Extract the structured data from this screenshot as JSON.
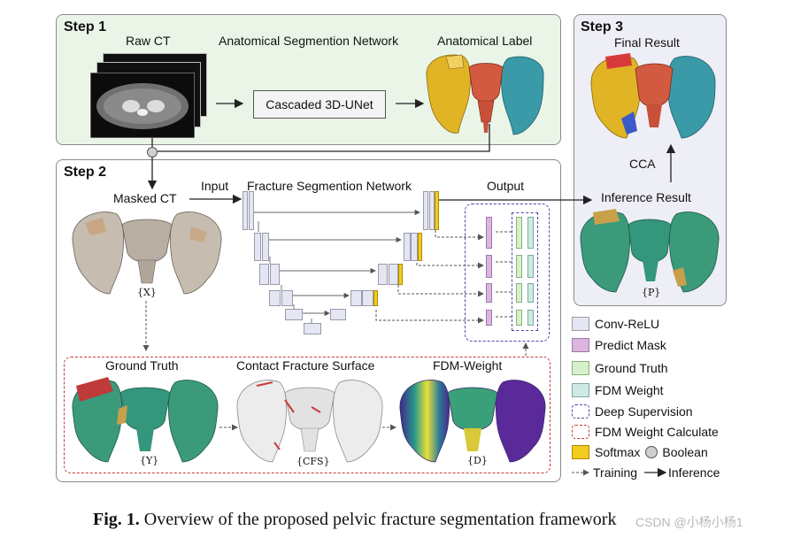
{
  "step1": {
    "title": "Step 1",
    "raw_ct": "Raw CT",
    "network": "Anatomical Segmention Network",
    "label": "Anatomical Label",
    "box": "Cascaded 3D-UNet"
  },
  "step2": {
    "title": "Step 2",
    "masked_ct": "Masked CT",
    "input": "Input",
    "network": "Fracture Segmention Network",
    "output": "Output",
    "x": "{X}",
    "ground_truth": "Ground Truth",
    "contact": "Contact Fracture Surface",
    "fdm_weight": "FDM-Weight",
    "y": "{Y}",
    "cfs": "{CFS}",
    "d": "{D}"
  },
  "step3": {
    "title": "Step 3",
    "final": "Final Result",
    "cca": "CCA",
    "inference": "Inference Result",
    "p": "{P}"
  },
  "legend": {
    "conv": "Conv-ReLU",
    "predict": "Predict Mask",
    "gt": "Ground Truth",
    "fdm": "FDM Weight",
    "deep": "Deep Supervision",
    "fdm_calc": "FDM Weight Calculate",
    "softmax": "Softmax",
    "boolean": "Boolean",
    "training": "Training",
    "inference": "Inference"
  },
  "colors": {
    "step1_bg": "#eaf5e8",
    "step3_bg": "#eeeef6",
    "conv": "#e4e6f3",
    "predict": "#dcb5e0",
    "gt": "#d6f0cc",
    "fdm": "#cfeae6",
    "softmax": "#f2cc1e",
    "deep": "#4a4aa8",
    "fdm_calc": "#c83a3a"
  },
  "caption": {
    "fig": "Fig. 1.",
    "text": "Overview of the proposed pelvic fracture segmentation framework"
  },
  "watermark": "CSDN @小杨小杨1"
}
